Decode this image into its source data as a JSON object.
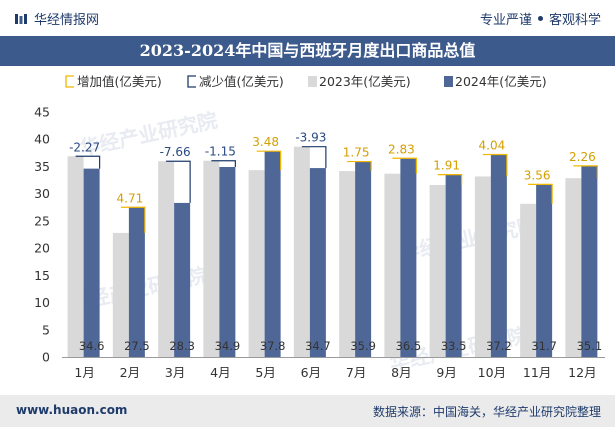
{
  "header": {
    "brand": "华经情报网",
    "tagline_left": "专业严谨",
    "tagline_right": "客观科学"
  },
  "title": "2023-2024年中国与西班牙月度出口商品总值",
  "footer": {
    "site": "www.huaon.com",
    "source": "数据来源：中国海关，华经产业研究院整理"
  },
  "watermark": "华经产业研究院",
  "colors": {
    "series_2023": "#d9d9d9",
    "series_2024": "#4f6796",
    "increase": "#f2b800",
    "decrease": "#1f3b6b",
    "title_bg": "#3d5a8c"
  },
  "chart_data": {
    "type": "bar",
    "categories": [
      "1月",
      "2月",
      "3月",
      "4月",
      "5月",
      "6月",
      "7月",
      "8月",
      "9月",
      "10月",
      "11月",
      "12月"
    ],
    "series": [
      {
        "name": "2023年(亿美元)",
        "values": [
          36.87,
          22.79,
          35.96,
          36.05,
          34.32,
          38.63,
          34.15,
          33.67,
          31.59,
          33.16,
          28.14,
          32.84
        ]
      },
      {
        "name": "2024年(亿美元)",
        "values": [
          34.6,
          27.5,
          28.3,
          34.9,
          37.8,
          34.7,
          35.9,
          36.5,
          33.5,
          37.2,
          31.7,
          35.1
        ]
      }
    ],
    "change_labels": [
      "-2.27",
      "4.71",
      "-7.66",
      "-1.15",
      "3.48",
      "-3.93",
      "1.75",
      "2.83",
      "1.91",
      "4.04",
      "3.56",
      "2.26"
    ],
    "change_values": [
      -2.27,
      4.71,
      -7.66,
      -1.15,
      3.48,
      -3.93,
      1.75,
      2.83,
      1.91,
      4.04,
      3.56,
      2.26
    ],
    "legend": {
      "increase": "增加值(亿美元)",
      "decrease": "减少值(亿美元)",
      "s2023": "2023年(亿美元)",
      "s2024": "2024年(亿美元)"
    },
    "yticks": [
      "0",
      "5",
      "10",
      "15",
      "20",
      "25",
      "30",
      "35",
      "40",
      "45"
    ],
    "ylim": [
      0,
      45
    ],
    "grid": false,
    "legend_position": "top"
  }
}
